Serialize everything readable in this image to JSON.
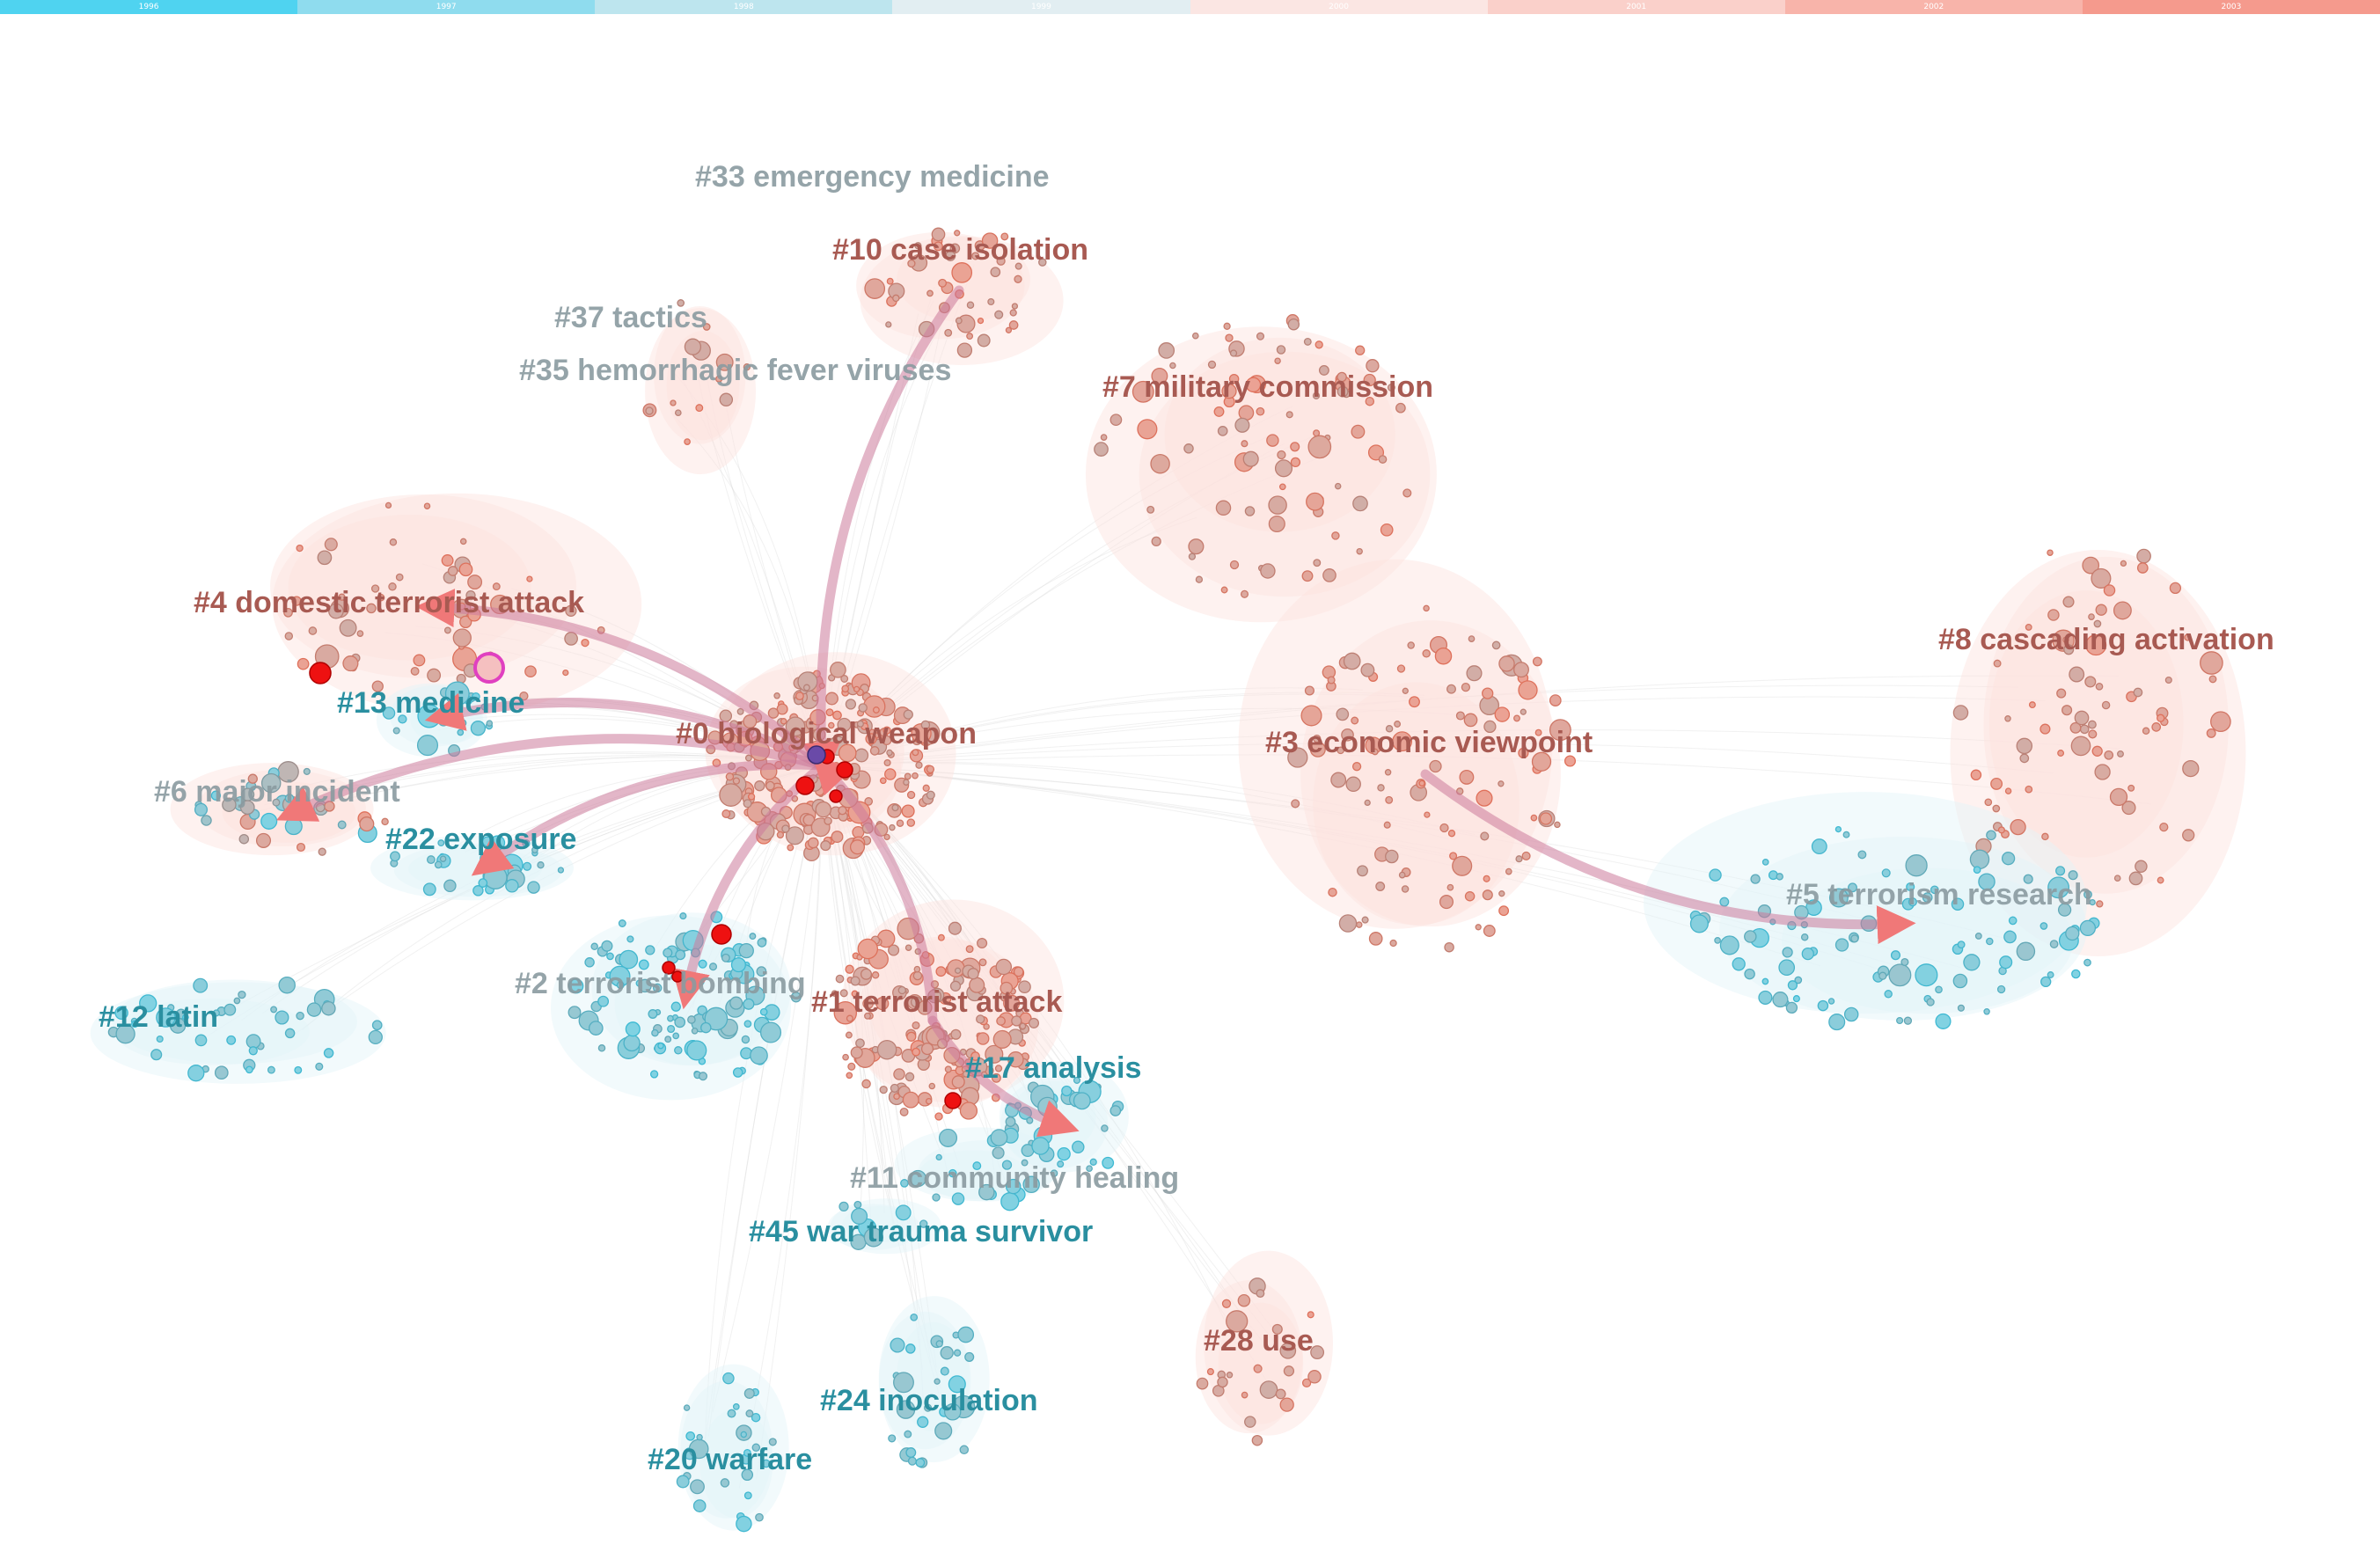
{
  "timeline": {
    "years": [
      "1996",
      "1997",
      "1998",
      "1999",
      "2000",
      "2001",
      "2002",
      "2003"
    ],
    "colors": [
      "#4fd3f0",
      "#8fdcee",
      "#bde5ee",
      "#e2eef2",
      "#fbe6e3",
      "#fad0ca",
      "#f8b4aa",
      "#f59a8d"
    ]
  },
  "colors": {
    "recent": "#e0705a",
    "early": "#3bbad4",
    "burst": "#ee1111",
    "centrality": "#e040c0",
    "label_red": "#a85a52",
    "label_teal": "#2a8fa0",
    "label_gray": "#8a9aa0"
  },
  "clusters": [
    {
      "id": "c33",
      "label": "#33 emergency medicine",
      "tone": "gray",
      "era": "recent"
    },
    {
      "id": "c10",
      "label": "#10 case isolation",
      "tone": "red",
      "era": "recent"
    },
    {
      "id": "c37",
      "label": "#37 tactics",
      "tone": "gray",
      "era": "recent"
    },
    {
      "id": "c35",
      "label": "#35 hemorrhagic fever viruses",
      "tone": "gray",
      "era": "mixed"
    },
    {
      "id": "c7",
      "label": "#7 military commission",
      "tone": "red",
      "era": "recent"
    },
    {
      "id": "c4",
      "label": "#4 domestic terrorist attack",
      "tone": "red",
      "era": "recent"
    },
    {
      "id": "c8",
      "label": "#8 cascading activation",
      "tone": "red",
      "era": "recent"
    },
    {
      "id": "c13",
      "label": "#13 medicine",
      "tone": "teal",
      "era": "early"
    },
    {
      "id": "c0",
      "label": "#0 biological weapon",
      "tone": "red",
      "era": "recent"
    },
    {
      "id": "c3",
      "label": "#3 economic viewpoint",
      "tone": "red",
      "era": "recent"
    },
    {
      "id": "c6",
      "label": "#6 major incident",
      "tone": "gray",
      "era": "mixed"
    },
    {
      "id": "c22",
      "label": "#22 exposure",
      "tone": "teal",
      "era": "early"
    },
    {
      "id": "c5",
      "label": "#5 terrorism research",
      "tone": "gray",
      "era": "early"
    },
    {
      "id": "c2",
      "label": "#2 terrorist bombing",
      "tone": "gray",
      "era": "early"
    },
    {
      "id": "c12",
      "label": "#12 latin",
      "tone": "teal",
      "era": "early"
    },
    {
      "id": "c1",
      "label": "#1 terrorist attack",
      "tone": "red",
      "era": "recent"
    },
    {
      "id": "c17",
      "label": "#17 analysis",
      "tone": "teal",
      "era": "early"
    },
    {
      "id": "c11",
      "label": "#11 community healing",
      "tone": "gray",
      "era": "early"
    },
    {
      "id": "c45",
      "label": "#45 war trauma survivor",
      "tone": "teal",
      "era": "early"
    },
    {
      "id": "c28",
      "label": "#28 use",
      "tone": "red",
      "era": "recent"
    },
    {
      "id": "c24",
      "label": "#24 inoculation",
      "tone": "teal",
      "era": "early"
    },
    {
      "id": "c20",
      "label": "#20 warfare",
      "tone": "teal",
      "era": "early"
    }
  ],
  "flows": [
    {
      "from": "c10",
      "to": "c0"
    },
    {
      "from": "c0",
      "to": "c4"
    },
    {
      "from": "c0",
      "to": "c13"
    },
    {
      "from": "c0",
      "to": "c6"
    },
    {
      "from": "c0",
      "to": "c22"
    },
    {
      "from": "c0",
      "to": "c2"
    },
    {
      "from": "c1",
      "to": "c0"
    },
    {
      "from": "c1",
      "to": "c17"
    },
    {
      "from": "c3",
      "to": "c5"
    }
  ]
}
